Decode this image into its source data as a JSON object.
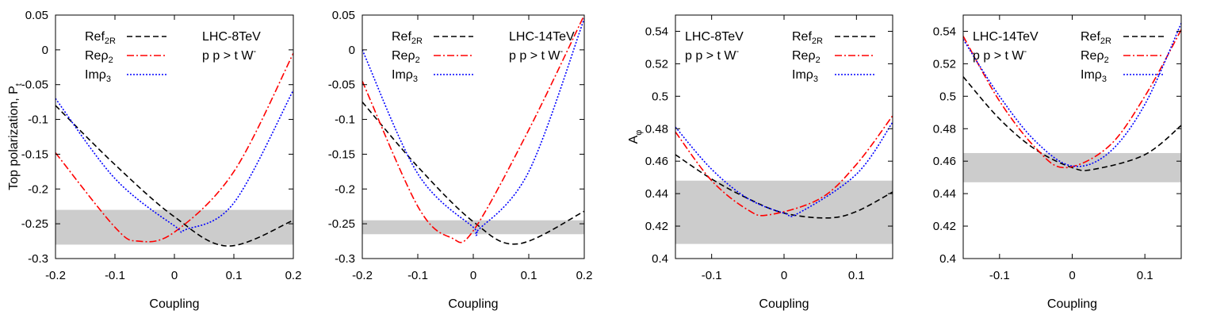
{
  "chart_data": [
    {
      "type": "line",
      "title": "",
      "xlabel": "Coupling",
      "ylabel": "Top polarization, P",
      "ylabel_sub": "t",
      "xlim": [
        -0.2,
        0.2
      ],
      "ylim": [
        -0.3,
        0.05
      ],
      "xticks": [
        -0.2,
        -0.1,
        0,
        0.1,
        0.2
      ],
      "xtick_labels": [
        "-0.2",
        "-0.1",
        "0",
        "0.1",
        "0.2"
      ],
      "yticks": [
        -0.3,
        -0.25,
        -0.2,
        -0.15,
        -0.1,
        -0.05,
        0,
        0.05
      ],
      "ytick_labels": [
        "-0.3",
        "-0.25",
        "-0.2",
        "-0.15",
        "-0.1",
        "-0.05",
        "0",
        "0.05"
      ],
      "band": [
        -0.28,
        -0.23
      ],
      "annotation": [
        "LHC-8TeV",
        "p p > t W"
      ],
      "annotation_sup": "-",
      "legend_position": "top-left",
      "series": [
        {
          "name": "Ref",
          "sub": "2R",
          "color": "#000000",
          "style": "dashed",
          "points": [
            [
              -0.2,
              -0.08
            ],
            [
              -0.1,
              -0.165
            ],
            [
              0,
              -0.24
            ],
            [
              0.09,
              -0.282
            ],
            [
              0.2,
              -0.245
            ]
          ]
        },
        {
          "name": "Reρ",
          "sub": "2",
          "color": "#ff0000",
          "style": "dashdot",
          "points": [
            [
              -0.2,
              -0.148
            ],
            [
              -0.1,
              -0.255
            ],
            [
              -0.06,
              -0.275
            ],
            [
              0,
              -0.262
            ],
            [
              0.1,
              -0.175
            ],
            [
              0.2,
              -0.005
            ]
          ]
        },
        {
          "name": "Imρ",
          "sub": "3",
          "color": "#0000ff",
          "style": "dotted",
          "points": [
            [
              -0.2,
              -0.07
            ],
            [
              -0.1,
              -0.185
            ],
            [
              0,
              -0.253
            ],
            [
              0.02,
              -0.258
            ],
            [
              0.1,
              -0.22
            ],
            [
              0.2,
              -0.058
            ]
          ]
        }
      ]
    },
    {
      "type": "line",
      "title": "",
      "xlabel": "Coupling",
      "ylabel": "",
      "xlim": [
        -0.2,
        0.2
      ],
      "ylim": [
        -0.3,
        0.05
      ],
      "xticks": [
        -0.2,
        -0.1,
        0,
        0.1,
        0.2
      ],
      "xtick_labels": [
        "-0.2",
        "-0.1",
        "0",
        "0.1",
        "0.2"
      ],
      "yticks": [
        -0.3,
        -0.25,
        -0.2,
        -0.15,
        -0.1,
        -0.05,
        0,
        0.05
      ],
      "ytick_labels": [
        "-0.3",
        "-0.25",
        "-0.2",
        "-0.15",
        "-0.1",
        "-0.05",
        "0",
        "0.05"
      ],
      "band": [
        -0.265,
        -0.245
      ],
      "annotation": [
        "LHC-14TeV",
        "p p > t W"
      ],
      "annotation_sup": "-",
      "legend_position": "top-left",
      "series": [
        {
          "name": "Ref",
          "sub": "2R",
          "color": "#000000",
          "style": "dashed",
          "points": [
            [
              -0.2,
              -0.075
            ],
            [
              -0.1,
              -0.168
            ],
            [
              0,
              -0.247
            ],
            [
              0.08,
              -0.279
            ],
            [
              0.2,
              -0.232
            ]
          ]
        },
        {
          "name": "Reρ",
          "sub": "2",
          "color": "#ff0000",
          "style": "dashdot",
          "points": [
            [
              -0.2,
              -0.045
            ],
            [
              -0.1,
              -0.225
            ],
            [
              -0.04,
              -0.27
            ],
            [
              0,
              -0.26
            ],
            [
              0.1,
              -0.115
            ],
            [
              0.2,
              0.05
            ]
          ]
        },
        {
          "name": "Imρ",
          "sub": "3",
          "color": "#0000ff",
          "style": "dotted",
          "points": [
            [
              -0.2,
              0.0
            ],
            [
              -0.1,
              -0.178
            ],
            [
              0,
              -0.255
            ],
            [
              0.01,
              -0.258
            ],
            [
              0.1,
              -0.175
            ],
            [
              0.2,
              0.045
            ]
          ]
        }
      ]
    },
    {
      "type": "line",
      "title": "",
      "xlabel": "Coupling",
      "ylabel": "A",
      "ylabel_sub": "φ",
      "xlim": [
        -0.15,
        0.15
      ],
      "ylim": [
        0.4,
        0.55
      ],
      "xticks": [
        -0.1,
        0,
        0.1
      ],
      "xtick_labels": [
        "-0.1",
        "0",
        "0.1"
      ],
      "yticks": [
        0.4,
        0.42,
        0.44,
        0.46,
        0.48,
        0.5,
        0.52,
        0.54
      ],
      "ytick_labels": [
        "0.4",
        "0.42",
        "0.44",
        "0.46",
        "0.48",
        "0.5",
        "0.52",
        "0.54"
      ],
      "band": [
        0.409,
        0.448
      ],
      "annotation": [
        "LHC-8TeV",
        "p p > t W"
      ],
      "annotation_sup": "-",
      "legend_position": "top-right",
      "series": [
        {
          "name": "Ref",
          "sub": "2R",
          "color": "#000000",
          "style": "dashed",
          "points": [
            [
              -0.15,
              0.464
            ],
            [
              -0.1,
              0.449
            ],
            [
              -0.05,
              0.437
            ],
            [
              0,
              0.428
            ],
            [
              0.06,
              0.425
            ],
            [
              0.1,
              0.429
            ],
            [
              0.15,
              0.441
            ]
          ]
        },
        {
          "name": "Reρ",
          "sub": "2",
          "color": "#ff0000",
          "style": "dashdot",
          "points": [
            [
              -0.15,
              0.478
            ],
            [
              -0.1,
              0.448
            ],
            [
              -0.05,
              0.43
            ],
            [
              -0.02,
              0.427
            ],
            [
              0.05,
              0.437
            ],
            [
              0.1,
              0.458
            ],
            [
              0.15,
              0.488
            ]
          ]
        },
        {
          "name": "Imρ",
          "sub": "3",
          "color": "#0000ff",
          "style": "dotted",
          "points": [
            [
              -0.15,
              0.481
            ],
            [
              -0.1,
              0.455
            ],
            [
              -0.05,
              0.437
            ],
            [
              0,
              0.428
            ],
            [
              0.02,
              0.428
            ],
            [
              0.1,
              0.452
            ],
            [
              0.15,
              0.484
            ]
          ]
        }
      ]
    },
    {
      "type": "line",
      "title": "",
      "xlabel": "Coupling",
      "ylabel": "",
      "xlim": [
        -0.15,
        0.15
      ],
      "ylim": [
        0.4,
        0.55
      ],
      "xticks": [
        -0.1,
        0,
        0.1
      ],
      "xtick_labels": [
        "-0.1",
        "0",
        "0.1"
      ],
      "yticks": [
        0.4,
        0.42,
        0.44,
        0.46,
        0.48,
        0.5,
        0.52,
        0.54
      ],
      "ytick_labels": [
        "0.4",
        "0.42",
        "0.44",
        "0.46",
        "0.48",
        "0.5",
        "0.52",
        "0.54"
      ],
      "band": [
        0.447,
        0.465
      ],
      "annotation": [
        "LHC-14TeV",
        "p p > t W"
      ],
      "annotation_sup": "-",
      "legend_position": "top-right",
      "series": [
        {
          "name": "Ref",
          "sub": "2R",
          "color": "#000000",
          "style": "dashed",
          "points": [
            [
              -0.15,
              0.512
            ],
            [
              -0.1,
              0.486
            ],
            [
              -0.05,
              0.467
            ],
            [
              0,
              0.456
            ],
            [
              0.03,
              0.455
            ],
            [
              0.1,
              0.464
            ],
            [
              0.15,
              0.482
            ]
          ]
        },
        {
          "name": "Reρ",
          "sub": "2",
          "color": "#ff0000",
          "style": "dashdot",
          "points": [
            [
              -0.15,
              0.537
            ],
            [
              -0.1,
              0.497
            ],
            [
              -0.05,
              0.468
            ],
            [
              -0.01,
              0.456
            ],
            [
              0.05,
              0.469
            ],
            [
              0.1,
              0.5
            ],
            [
              0.15,
              0.541
            ]
          ]
        },
        {
          "name": "Imρ",
          "sub": "3",
          "color": "#0000ff",
          "style": "dotted",
          "points": [
            [
              -0.15,
              0.535
            ],
            [
              -0.1,
              0.5
            ],
            [
              -0.05,
              0.472
            ],
            [
              0,
              0.457
            ],
            [
              0.05,
              0.465
            ],
            [
              0.1,
              0.495
            ],
            [
              0.15,
              0.545
            ]
          ]
        }
      ]
    }
  ]
}
